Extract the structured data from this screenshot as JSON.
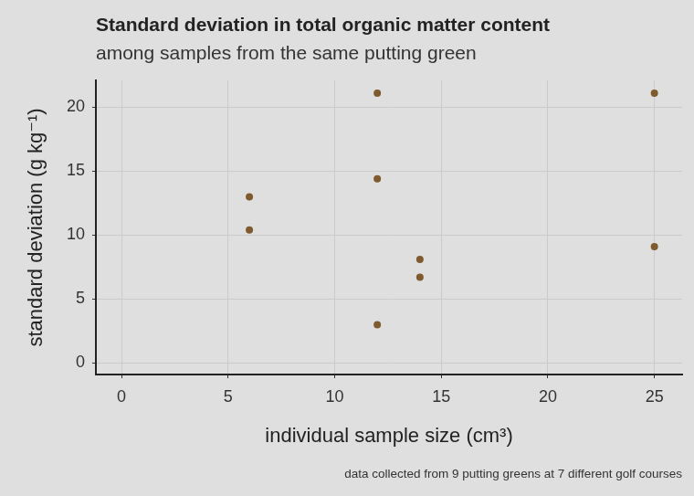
{
  "chart_data": {
    "type": "scatter",
    "title": "Standard deviation in total organic matter content",
    "subtitle": "among samples from the same putting green",
    "x_label": "individual sample size (cm³)",
    "y_label": "standard deviation (g kg⁻¹)",
    "caption": "data collected from 9 putting greens at 7 different golf courses",
    "x": [
      6,
      6,
      12,
      12,
      12,
      14,
      14,
      25,
      25
    ],
    "values": [
      13.0,
      10.4,
      21.1,
      14.4,
      3.0,
      8.1,
      6.7,
      21.1,
      9.1
    ],
    "color": "#7f5a2e",
    "marker": "circle",
    "xlim": [
      -1.2,
      26.3
    ],
    "ylim": [
      -0.9,
      22.1
    ],
    "xticks": [
      0,
      5,
      10,
      15,
      20,
      25
    ],
    "yticks": [
      0,
      5,
      10,
      15,
      20
    ],
    "grid": true
  }
}
